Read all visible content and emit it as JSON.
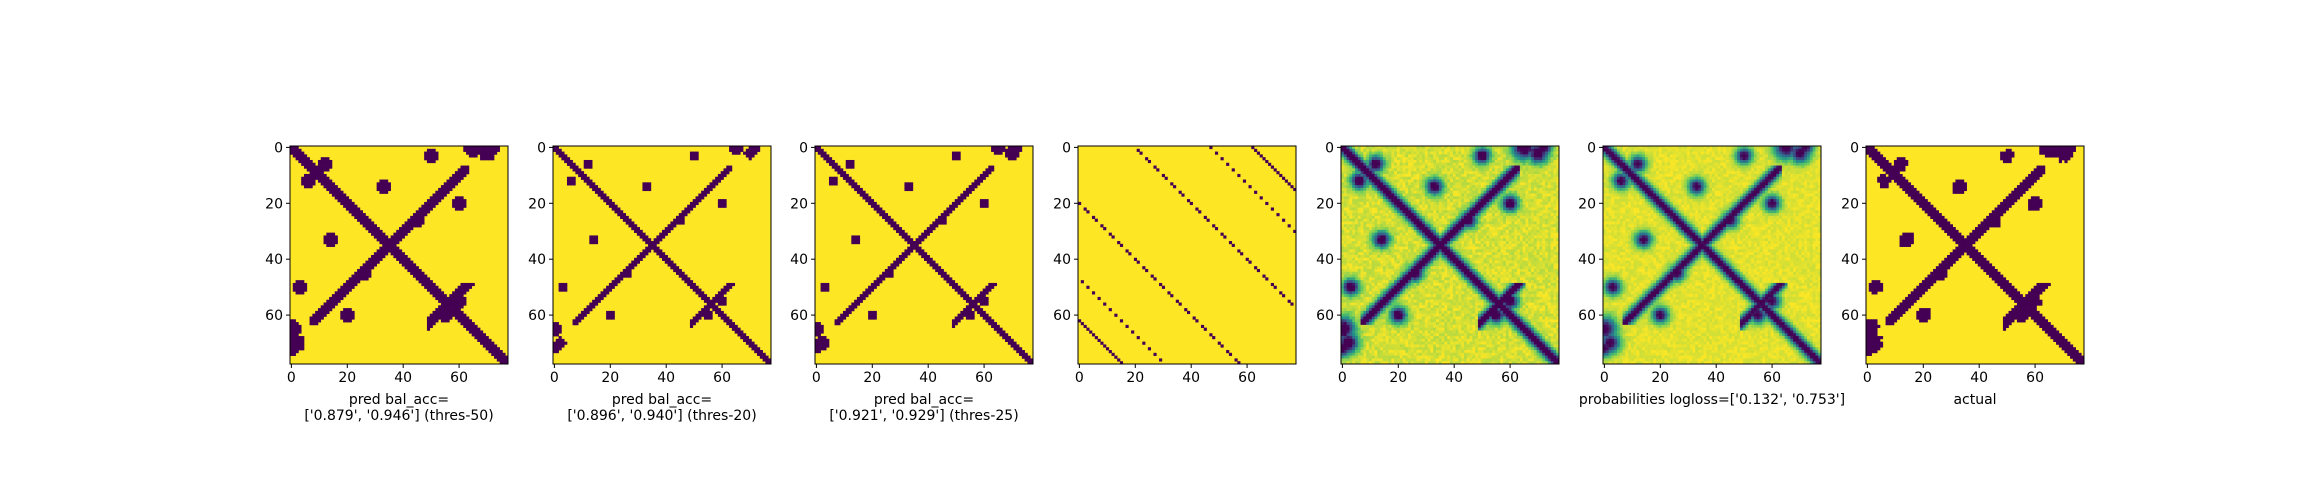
{
  "chart_data": [
    {
      "type": "heatmap",
      "matrix": "binary",
      "threshold": 50,
      "title": "",
      "xlabel_lines": [
        "pred bal_acc=",
        "['0.879', '0.946'] (thres-50)"
      ],
      "xticks": [
        0,
        20,
        40,
        60
      ],
      "yticks": [
        0,
        20,
        40,
        60
      ],
      "xlim": [
        0,
        78
      ],
      "ylim": [
        78,
        0
      ]
    },
    {
      "type": "heatmap",
      "matrix": "binary",
      "threshold": 20,
      "title": "",
      "xlabel_lines": [
        "pred bal_acc=",
        "['0.896', '0.940'] (thres-20)"
      ],
      "xticks": [
        0,
        20,
        40,
        60
      ],
      "yticks": [
        0,
        20,
        40,
        60
      ],
      "xlim": [
        0,
        78
      ],
      "ylim": [
        78,
        0
      ]
    },
    {
      "type": "heatmap",
      "matrix": "binary",
      "threshold": 25,
      "title": "",
      "xlabel_lines": [
        "pred bal_acc=",
        "['0.921', '0.929'] (thres-25)"
      ],
      "xticks": [
        0,
        20,
        40,
        60
      ],
      "yticks": [
        0,
        20,
        40,
        60
      ],
      "xlim": [
        0,
        78
      ],
      "ylim": [
        78,
        0
      ]
    },
    {
      "type": "heatmap",
      "matrix": "sparse-diagonals",
      "title": "",
      "xlabel_lines": [],
      "xticks": [
        0,
        20,
        40,
        60
      ],
      "yticks": [
        0,
        20,
        40,
        60
      ],
      "xlim": [
        0,
        78
      ],
      "ylim": [
        78,
        0
      ]
    },
    {
      "type": "heatmap",
      "matrix": "continuous",
      "title": "",
      "xlabel_lines": [],
      "xticks": [
        0,
        20,
        40,
        60
      ],
      "yticks": [
        0,
        20,
        40,
        60
      ],
      "xlim": [
        0,
        78
      ],
      "ylim": [
        78,
        0
      ]
    },
    {
      "type": "heatmap",
      "matrix": "probabilities",
      "title": "",
      "xlabel_lines": [
        "probabilities logloss=['0.132', '0.753']"
      ],
      "xticks": [
        0,
        20,
        40,
        60
      ],
      "yticks": [
        0,
        20,
        40,
        60
      ],
      "xlim": [
        0,
        78
      ],
      "ylim": [
        78,
        0
      ]
    },
    {
      "type": "heatmap",
      "matrix": "actual",
      "threshold": 30,
      "title": "",
      "xlabel_lines": [
        "actual"
      ],
      "xticks": [
        0,
        20,
        40,
        60
      ],
      "yticks": [
        0,
        20,
        40,
        60
      ],
      "xlim": [
        0,
        78
      ],
      "ylim": [
        78,
        0
      ]
    }
  ],
  "colormap": "viridis",
  "colors": {
    "low": "#440154",
    "high": "#fde725"
  }
}
